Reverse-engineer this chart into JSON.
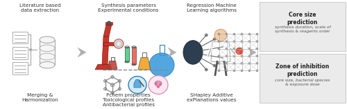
{
  "bg_color": "#ffffff",
  "arrow_color": "#aaaaaa",
  "box_bg_color": "#ebebeb",
  "box_border_color": "#cccccc",
  "text_color": "#333333",
  "title_top_left": "Literature based\ndata extraction",
  "title_top_center1": "Synthesis parameters\nExperimental conditions",
  "title_top_center2": "Regression Machine\nLearning algorithms",
  "bottom_left": "Merging &\nHarmonization",
  "bottom_center1": "Pchem properties\nToxicological profiles\nAntibacterial profiles",
  "bottom_center2": "SHapley Additive\nexPlanations values",
  "box1_title": "Core size\nprediction",
  "box1_sub": "synthesis duration, scale of\nsynthesis & reagents order",
  "box2_title": "Zone of inhibition\nprediction",
  "box2_sub": "core size, bacterial species\n& exposure dose"
}
